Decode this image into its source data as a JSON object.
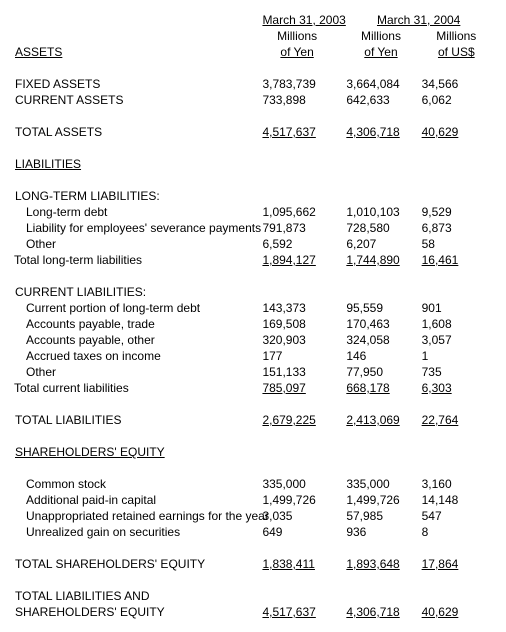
{
  "header": {
    "date_2003": "March 31, 2003",
    "date_2004": "March 31, 2004",
    "unit_yen": "Millions\nof Yen",
    "unit_usd": "Millions\nof US$",
    "unit_yen_l1": "Millions",
    "unit_yen_l2": "of Yen",
    "unit_usd_l1": "Millions",
    "unit_usd_l2": "of US$"
  },
  "sections": {
    "assets": "ASSETS",
    "liabilities": "LIABILITIES",
    "ltl_heading": "LONG-TERM LIABILITIES:",
    "cl_heading": "CURRENT LIABILITIES:",
    "shareholders_equity": "SHAREHOLDERS' EQUITY",
    "total_assets": "TOTAL ASSETS",
    "total_liabilities": "TOTAL LIABILITIES",
    "total_se": "TOTAL SHAREHOLDERS' EQUITY",
    "total_liab_and_l1": "TOTAL LIABILITIES AND",
    "total_liab_and_l2": "SHAREHOLDERS' EQUITY"
  },
  "rows": {
    "fixed_assets": {
      "label": "FIXED ASSETS",
      "y2003": "3,783,739",
      "y2004": "3,664,084",
      "usd": "34,566"
    },
    "current_assets": {
      "label": "CURRENT ASSETS",
      "y2003": "733,898",
      "y2004": "642,633",
      "usd": "6,062"
    },
    "total_assets": {
      "y2003": "4,517,637",
      "y2004": "4,306,718",
      "usd": "40,629"
    },
    "ltd": {
      "label": "Long-term debt",
      "y2003": "1,095,662",
      "y2004": "1,010,103",
      "usd": "9,529"
    },
    "severance": {
      "label": "Liability for employees' severance payments",
      "y2003": "791,873",
      "y2004": "728,580",
      "usd": "6,873"
    },
    "lt_other": {
      "label": "Other",
      "y2003": "6,592",
      "y2004": "6,207",
      "usd": "58"
    },
    "total_ltl": {
      "label": "Total long-term liabilities",
      "y2003": "1,894,127",
      "y2004": "1,744,890",
      "usd": "16,461"
    },
    "cp_ltd": {
      "label": "Current portion of long-term debt",
      "y2003": "143,373",
      "y2004": "95,559",
      "usd": "901"
    },
    "ap_trade": {
      "label": "Accounts payable, trade",
      "y2003": "169,508",
      "y2004": "170,463",
      "usd": "1,608"
    },
    "ap_other": {
      "label": "Accounts payable, other",
      "y2003": "320,903",
      "y2004": "324,058",
      "usd": "3,057"
    },
    "accrued_tax": {
      "label": "Accrued taxes on income",
      "y2003": "177",
      "y2004": "146",
      "usd": "1"
    },
    "cl_other": {
      "label": "Other",
      "y2003": "151,133",
      "y2004": "77,950",
      "usd": "735"
    },
    "total_cl": {
      "label": "Total current liabilities",
      "y2003": "785,097",
      "y2004": "668,178",
      "usd": "6,303"
    },
    "total_liab": {
      "y2003": "2,679,225",
      "y2004": "2,413,069",
      "usd": "22,764"
    },
    "common_stock": {
      "label": "Common stock",
      "y2003": "335,000",
      "y2004": "335,000",
      "usd": "3,160"
    },
    "paid_in": {
      "label": "Additional paid-in capital",
      "y2003": "1,499,726",
      "y2004": "1,499,726",
      "usd": "14,148"
    },
    "retained": {
      "label": "Unappropriated retained earnings for the year",
      "y2003": "3,035",
      "y2004": "57,985",
      "usd": "547"
    },
    "unrealized": {
      "label": "Unrealized gain on securities",
      "y2003": "649",
      "y2004": "936",
      "usd": "8"
    },
    "total_se": {
      "y2003": "1,838,411",
      "y2004": "1,893,648",
      "usd": "17,864"
    },
    "grand_total": {
      "y2003": "4,517,637",
      "y2004": "4,306,718",
      "usd": "40,629"
    }
  },
  "style": {
    "font_family": "Arial",
    "font_size_pt": 9,
    "text_color": "#000000",
    "background_color": "#ffffff"
  }
}
